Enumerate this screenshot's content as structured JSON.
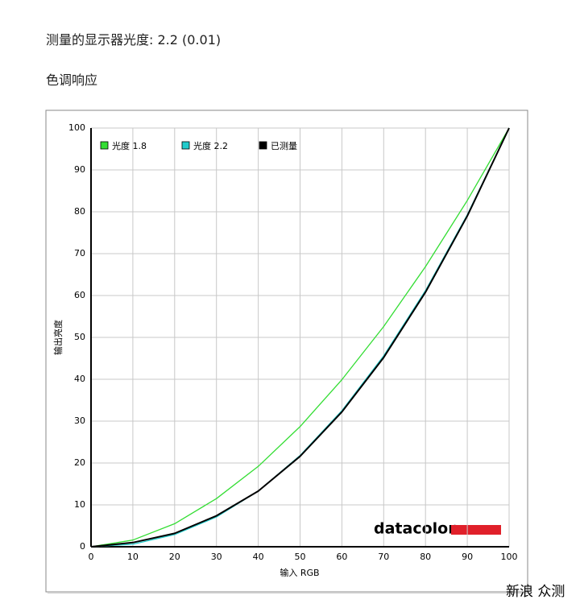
{
  "header": {
    "title": "测量的显示器光度:  2.2 (0.01)",
    "section": "色调响应"
  },
  "watermark": "新浪 众测",
  "chart_data": {
    "type": "line",
    "xlabel": "输入 RGB",
    "ylabel": "输出亮度",
    "logo": "datacolor",
    "x": [
      0,
      10,
      20,
      30,
      40,
      50,
      60,
      70,
      80,
      90,
      100
    ],
    "series": [
      {
        "name": "光度 1.8",
        "color": "#33dd33",
        "values": [
          0,
          1.6,
          5.5,
          11.5,
          19.2,
          28.7,
          39.9,
          52.6,
          66.9,
          82.7,
          100
        ]
      },
      {
        "name": "光度 2.2",
        "color": "#22cccc",
        "values": [
          0,
          0.6,
          2.9,
          7.1,
          13.3,
          21.8,
          32.5,
          45.6,
          61.2,
          79.3,
          100
        ]
      },
      {
        "name": "已测量",
        "color": "#000000",
        "values": [
          0,
          1.0,
          3.2,
          7.4,
          13.3,
          21.6,
          32.2,
          45.2,
          60.8,
          79.0,
          100
        ]
      }
    ],
    "xlim": [
      0,
      100
    ],
    "ylim": [
      0,
      100
    ],
    "xticks": [
      0,
      10,
      20,
      30,
      40,
      50,
      60,
      70,
      80,
      90,
      100
    ],
    "yticks": [
      0,
      10,
      20,
      30,
      40,
      50,
      60,
      70,
      80,
      90,
      100
    ],
    "grid": true,
    "legend": "top-left"
  }
}
